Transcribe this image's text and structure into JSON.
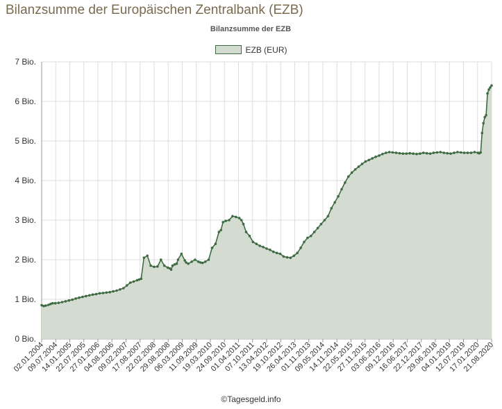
{
  "page_title": "Bilanzsumme der Europäischen Zentralbank (EZB)",
  "credit": "©Tagesgeld.info",
  "colors": {
    "fill": "#d4dcd2",
    "line": "#3f6b42",
    "grid": "#dddddd",
    "axis": "#999999",
    "title_brown": "#7a6a4f"
  },
  "chart_data": {
    "type": "area",
    "title": "Bilanzsumme der EZB",
    "legend": {
      "position": "top-center",
      "entries": [
        "EZB (EUR)"
      ]
    },
    "grid": true,
    "ylim": [
      0,
      7
    ],
    "y_ticks": [
      "0 Bio.",
      "1 Bio.",
      "2 Bio.",
      "3 Bio.",
      "4 Bio.",
      "5 Bio.",
      "6 Bio.",
      "7 Bio."
    ],
    "x_ticks": [
      "02.01.2004",
      "09.07.2004",
      "14.01.2005",
      "22.07.2005",
      "27.01.2006",
      "04.08.2006",
      "09.02.2007",
      "17.08.2007",
      "22.02.2008",
      "29.08.2008",
      "06.03.2009",
      "11.09.2009",
      "19.03.2010",
      "24.09.2010",
      "01.04.2011",
      "07.10.2011",
      "13.04.2012",
      "19.10.2012",
      "26.04.2013",
      "01.11.2013",
      "09.05.2014",
      "14.11.2014",
      "22.05.2015",
      "27.11.2015",
      "03.06.2016",
      "09.12.2016",
      "16.06.2017",
      "22.12.2017",
      "29.06.2018",
      "04.01.2019",
      "12.07.2019",
      "17.01.2020",
      "21.08.2020"
    ],
    "series": [
      {
        "name": "EZB (EUR)",
        "x": [
          0,
          0.3,
          0.6,
          1,
          1.3,
          1.6,
          2,
          2.5,
          3,
          3.5,
          4,
          4.5,
          5,
          5.5,
          6,
          6.5,
          7,
          7.5,
          8,
          8.5,
          9,
          9.5,
          10,
          10.5,
          11,
          11.5,
          12,
          12.5,
          13,
          13.5,
          14,
          14.3,
          14.6,
          15,
          15.5,
          16,
          16.5,
          17,
          17.5,
          18,
          18.5,
          18.8,
          19,
          19.2,
          19.5,
          19.8,
          20,
          20.5,
          21,
          21.2,
          21.5,
          22,
          22.5,
          23,
          23.3,
          23.6,
          24,
          24.5,
          25,
          25.5,
          26,
          26.3,
          26.6,
          27,
          27.5,
          28,
          28.5,
          29,
          29.3,
          29.6,
          30,
          30.5,
          31,
          31.5,
          32,
          32.5,
          33,
          33.5,
          34,
          34.5,
          35,
          35.5,
          36,
          36.5,
          37,
          37.5,
          38,
          38.5,
          39,
          39.5,
          40,
          40.5,
          41,
          41.5,
          42,
          42.5,
          43,
          43.5,
          44,
          44.5,
          45,
          45.5,
          46,
          46.5,
          47,
          47.5,
          48,
          48.5,
          49,
          49.5,
          50,
          50.5,
          51,
          51.5,
          52,
          52.5,
          53,
          53.5,
          54,
          54.5,
          55,
          55.5,
          56,
          56.5,
          57,
          57.5,
          58,
          58.5,
          59,
          59.5,
          60,
          60.5,
          61,
          61.5,
          62,
          62.5,
          63,
          63.5,
          64,
          64.2,
          64.4,
          64.6,
          64.8,
          65,
          65.2,
          65.4,
          65.6,
          65.8,
          66
        ],
        "y": [
          0.85,
          0.83,
          0.84,
          0.86,
          0.88,
          0.9,
          0.9,
          0.91,
          0.93,
          0.95,
          0.97,
          0.99,
          1.02,
          1.04,
          1.06,
          1.08,
          1.1,
          1.12,
          1.13,
          1.15,
          1.16,
          1.17,
          1.18,
          1.2,
          1.22,
          1.25,
          1.28,
          1.35,
          1.42,
          1.45,
          1.48,
          1.5,
          1.52,
          2.05,
          2.1,
          1.85,
          1.82,
          1.83,
          2.0,
          1.85,
          1.8,
          1.78,
          1.75,
          1.85,
          1.88,
          1.9,
          2.0,
          2.15,
          1.98,
          1.93,
          1.9,
          1.95,
          2.0,
          1.95,
          1.93,
          1.92,
          1.95,
          2.0,
          2.3,
          2.4,
          2.7,
          2.75,
          2.95,
          2.98,
          3.0,
          3.1,
          3.08,
          3.05,
          3.0,
          2.9,
          2.7,
          2.6,
          2.45,
          2.4,
          2.35,
          2.32,
          2.28,
          2.25,
          2.2,
          2.17,
          2.15,
          2.08,
          2.06,
          2.05,
          2.1,
          2.17,
          2.3,
          2.45,
          2.55,
          2.6,
          2.7,
          2.8,
          2.9,
          3.0,
          3.1,
          3.3,
          3.45,
          3.6,
          3.78,
          3.95,
          4.1,
          4.2,
          4.28,
          4.35,
          4.42,
          4.48,
          4.52,
          4.56,
          4.6,
          4.63,
          4.67,
          4.7,
          4.72,
          4.71,
          4.7,
          4.69,
          4.68,
          4.68,
          4.69,
          4.68,
          4.67,
          4.68,
          4.7,
          4.69,
          4.68,
          4.7,
          4.71,
          4.72,
          4.7,
          4.69,
          4.68,
          4.7,
          4.72,
          4.71,
          4.7,
          4.7,
          4.7,
          4.72,
          4.7,
          4.69,
          4.71,
          5.2,
          5.45,
          5.6,
          5.65,
          6.2,
          6.3,
          6.35,
          6.4
        ]
      }
    ]
  }
}
